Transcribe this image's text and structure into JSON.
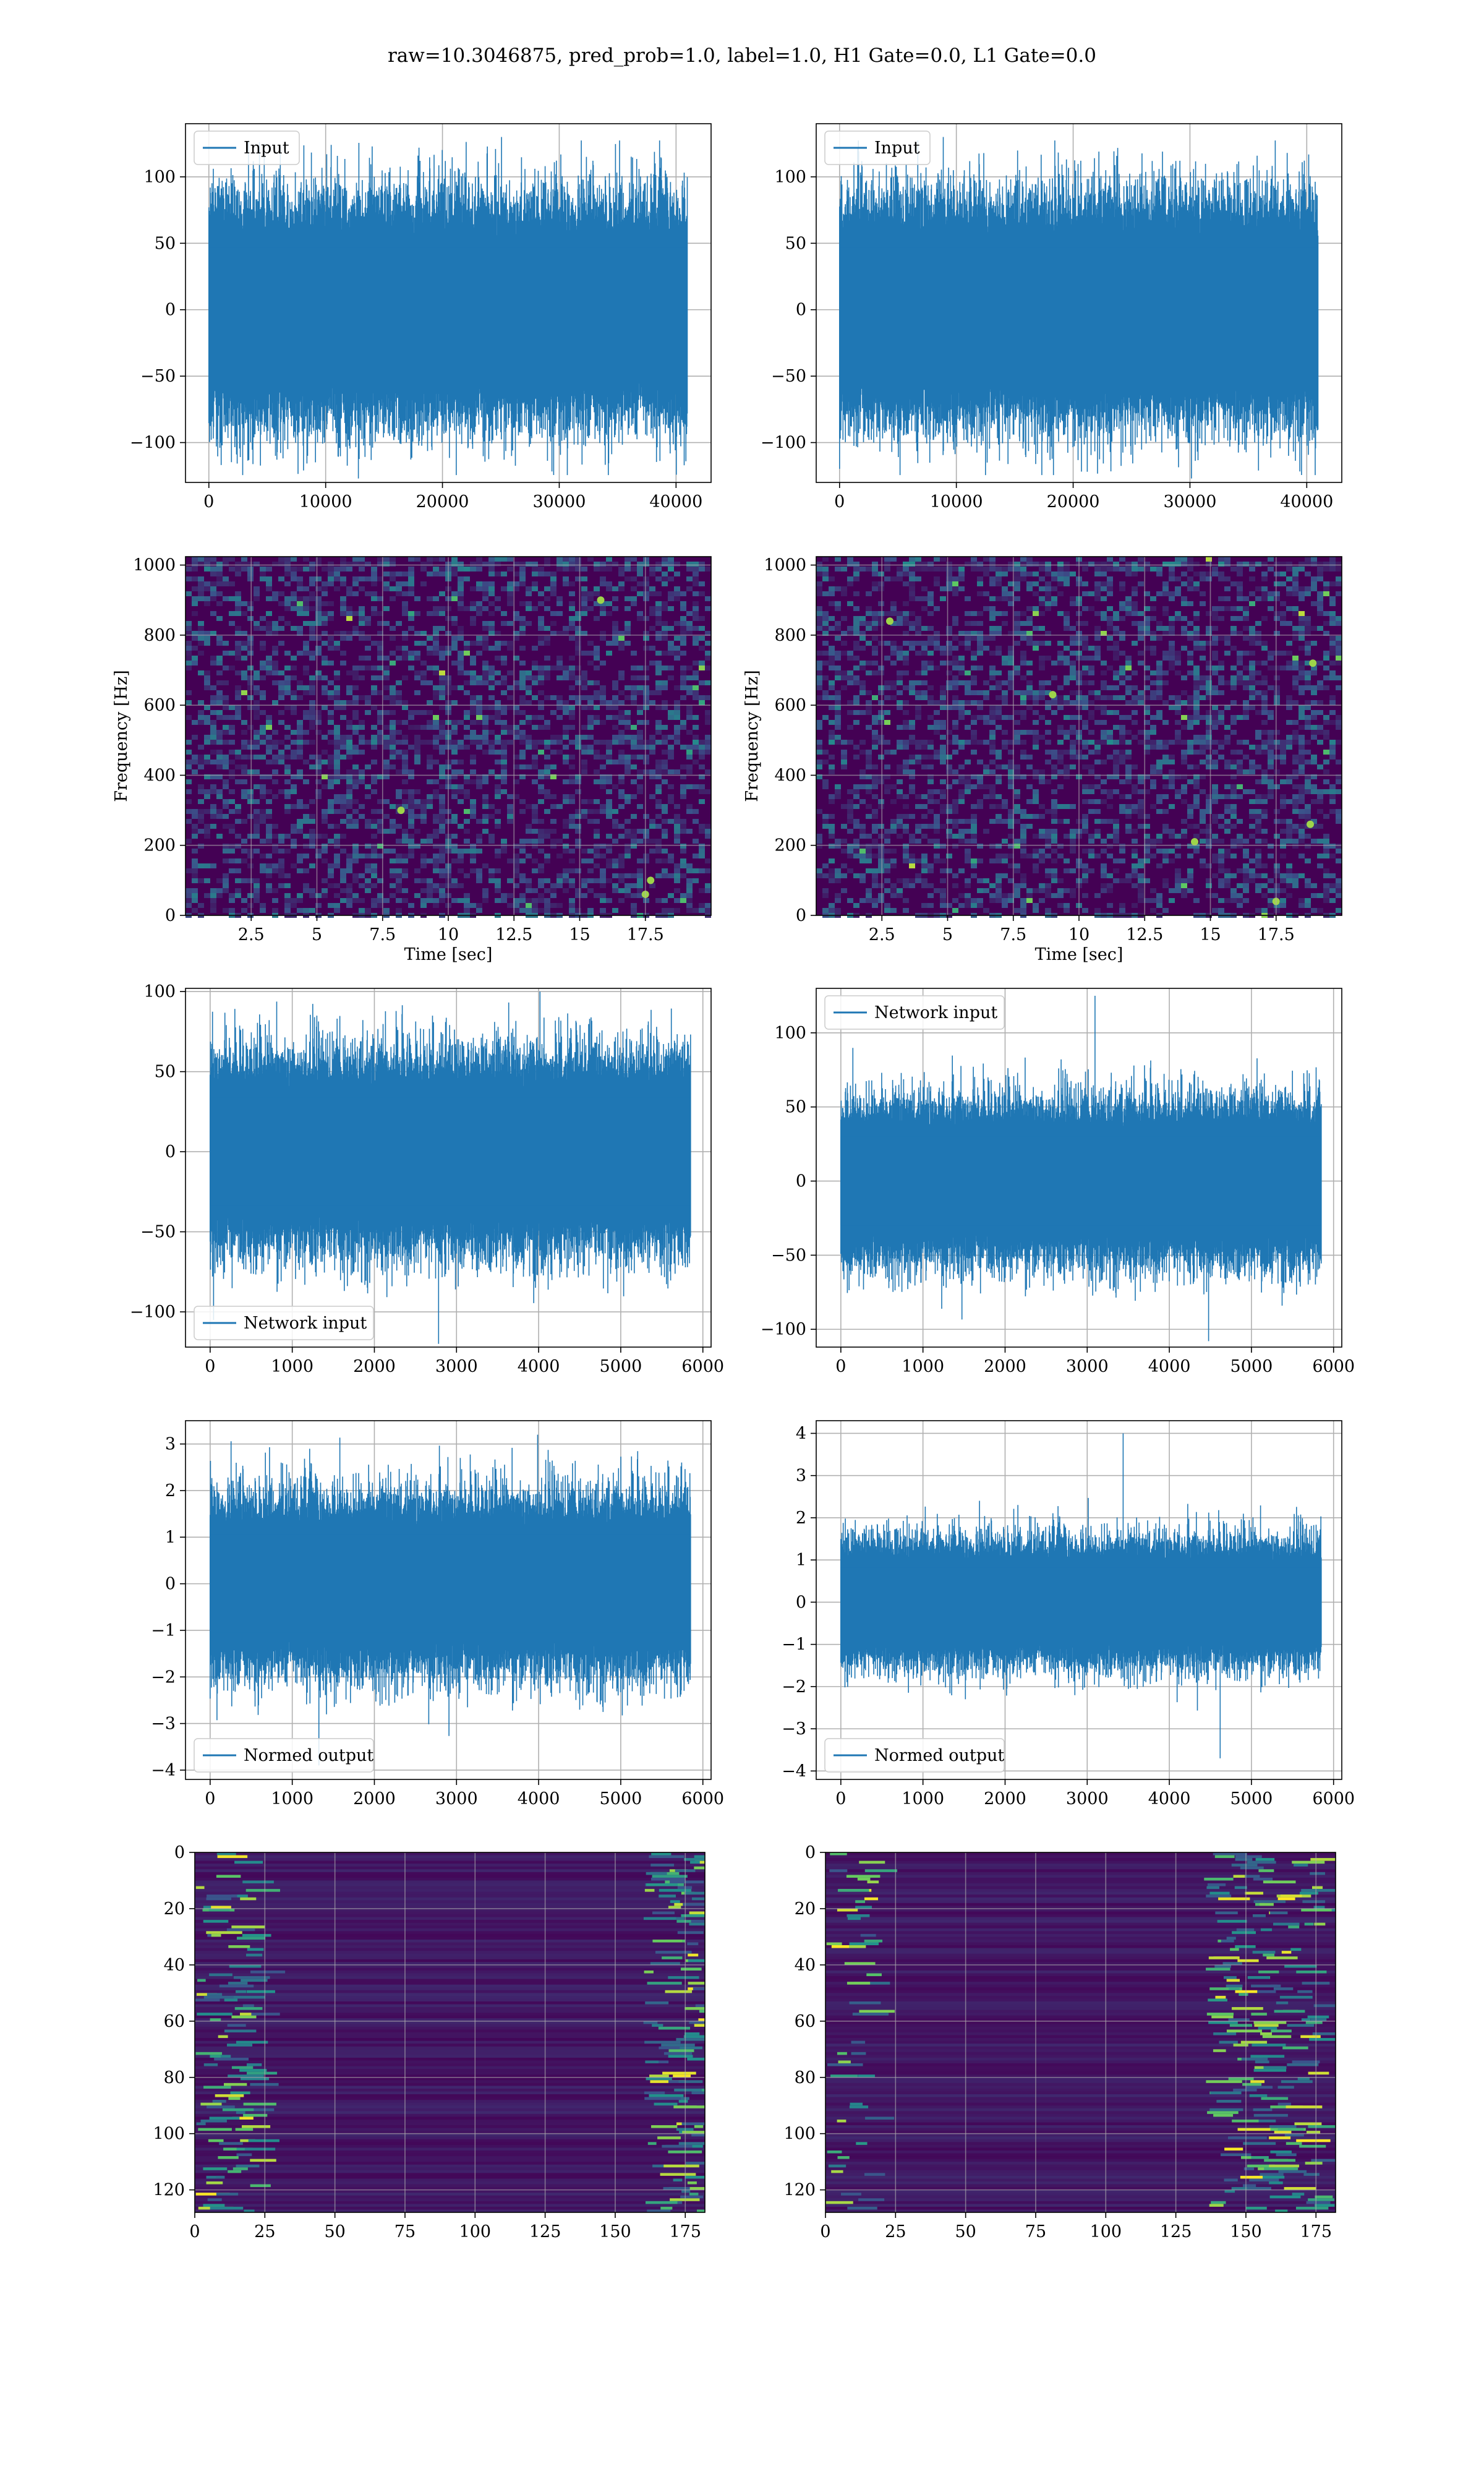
{
  "figure": {
    "suptitle": "raw=10.3046875, pred_prob=1.0, label=1.0, H1 Gate=0.0, L1 Gate=0.0"
  },
  "colors": {
    "line": "#1f77b4",
    "grid": "#b0b0b0",
    "heat_low": "#440154",
    "heat_mid": "#21918c",
    "heat_high": "#fde725"
  },
  "chart_data": [
    {
      "id": "r0c0",
      "type": "line",
      "legend": "Input",
      "legend_loc": "upper-left",
      "xlim": [
        -2000,
        43000
      ],
      "ylim": [
        -130,
        140
      ],
      "xticks": [
        0,
        10000,
        20000,
        30000,
        40000
      ],
      "yticks": [
        -100,
        -50,
        0,
        50,
        100
      ],
      "series": [
        {
          "name": "Input",
          "x_range": [
            0,
            40960
          ],
          "core_abs": 62,
          "peak_min": -127,
          "peak_max": 130
        }
      ]
    },
    {
      "id": "r0c1",
      "type": "line",
      "legend": "Input",
      "legend_loc": "upper-left",
      "xlim": [
        -2000,
        43000
      ],
      "ylim": [
        -130,
        140
      ],
      "xticks": [
        0,
        10000,
        20000,
        30000,
        40000
      ],
      "yticks": [
        -100,
        -50,
        0,
        50,
        100
      ],
      "series": [
        {
          "name": "Input",
          "x_range": [
            0,
            40960
          ],
          "core_abs": 62,
          "peak_min": -127,
          "peak_max": 130
        }
      ]
    },
    {
      "id": "r1c0",
      "type": "heatmap",
      "xlabel": "Time [sec]",
      "ylabel": "Frequency [Hz]",
      "xlim": [
        0.0,
        20.0
      ],
      "ylim": [
        0,
        1024
      ],
      "xticks": [
        2.5,
        5.0,
        7.5,
        10.0,
        12.5,
        15.0,
        17.5
      ],
      "yticks": [
        0,
        200,
        400,
        600,
        800,
        1000
      ],
      "notes": "noise spectrogram with faint horizontal lines near 500 and 1000 Hz, brighter spots near 17.5 s low frequency"
    },
    {
      "id": "r1c1",
      "type": "heatmap",
      "xlabel": "Time [sec]",
      "ylabel": "Frequency [Hz]",
      "xlim": [
        0.0,
        20.0
      ],
      "ylim": [
        0,
        1024
      ],
      "xticks": [
        2.5,
        5.0,
        7.5,
        10.0,
        12.5,
        15.0,
        17.5
      ],
      "yticks": [
        0,
        200,
        400,
        600,
        800,
        1000
      ],
      "notes": "noise spectrogram with faint horizontal lines near 500 Hz, scattered bright spots"
    },
    {
      "id": "r2c0",
      "type": "line",
      "legend": "Network input",
      "legend_loc": "lower-left",
      "xlim": [
        -300,
        6100
      ],
      "ylim": [
        -122,
        102
      ],
      "xticks": [
        0,
        1000,
        2000,
        3000,
        4000,
        5000,
        6000
      ],
      "yticks": [
        -100,
        -50,
        0,
        50,
        100
      ],
      "series": [
        {
          "name": "Network input",
          "x_range": [
            0,
            5850
          ],
          "core_abs": 45,
          "peak_min": -120,
          "peak_max": 100
        }
      ]
    },
    {
      "id": "r2c1",
      "type": "line",
      "legend": "Network input",
      "legend_loc": "upper-left",
      "xlim": [
        -300,
        6100
      ],
      "ylim": [
        -112,
        130
      ],
      "xticks": [
        0,
        1000,
        2000,
        3000,
        4000,
        5000,
        6000
      ],
      "yticks": [
        -100,
        -50,
        0,
        50,
        100
      ],
      "series": [
        {
          "name": "Network input",
          "x_range": [
            0,
            5850
          ],
          "core_abs": 40,
          "peak_min": -108,
          "peak_max": 125
        }
      ]
    },
    {
      "id": "r3c0",
      "type": "line",
      "legend": "Normed output",
      "legend_loc": "lower-left",
      "xlim": [
        -300,
        6100
      ],
      "ylim": [
        -4.2,
        3.5
      ],
      "xticks": [
        0,
        1000,
        2000,
        3000,
        4000,
        5000,
        6000
      ],
      "yticks": [
        -4,
        -3,
        -2,
        -1,
        0,
        1,
        2,
        3
      ],
      "series": [
        {
          "name": "Normed output",
          "x_range": [
            0,
            5850
          ],
          "core_abs": 1.4,
          "peak_min": -3.9,
          "peak_max": 3.2
        }
      ]
    },
    {
      "id": "r3c1",
      "type": "line",
      "legend": "Normed output",
      "legend_loc": "lower-left",
      "xlim": [
        -300,
        6100
      ],
      "ylim": [
        -4.2,
        4.3
      ],
      "xticks": [
        0,
        1000,
        2000,
        3000,
        4000,
        5000,
        6000
      ],
      "yticks": [
        -4,
        -3,
        -2,
        -1,
        0,
        1,
        2,
        3,
        4
      ],
      "series": [
        {
          "name": "Normed output",
          "x_range": [
            0,
            5850
          ],
          "core_abs": 1.1,
          "peak_min": -3.7,
          "peak_max": 4.0
        }
      ]
    },
    {
      "id": "r4c0",
      "type": "heatmap",
      "origin": "upper",
      "xlim": [
        0,
        182
      ],
      "ylim": [
        0,
        128
      ],
      "xticks": [
        0,
        25,
        50,
        75,
        100,
        125,
        150,
        175
      ],
      "yticks": [
        0,
        20,
        40,
        60,
        80,
        100,
        120
      ],
      "notes": "128 feature rows x 182 time columns, mostly dark with bright streaks at left and right edges"
    },
    {
      "id": "r4c1",
      "type": "heatmap",
      "origin": "upper",
      "xlim": [
        0,
        182
      ],
      "ylim": [
        0,
        128
      ],
      "xticks": [
        0,
        25,
        50,
        75,
        100,
        125,
        150,
        175
      ],
      "yticks": [
        0,
        20,
        40,
        60,
        80,
        100,
        120
      ],
      "notes": "128 feature rows x 182 time columns, mostly dark with bright streaks concentrated around columns 140-175"
    }
  ]
}
